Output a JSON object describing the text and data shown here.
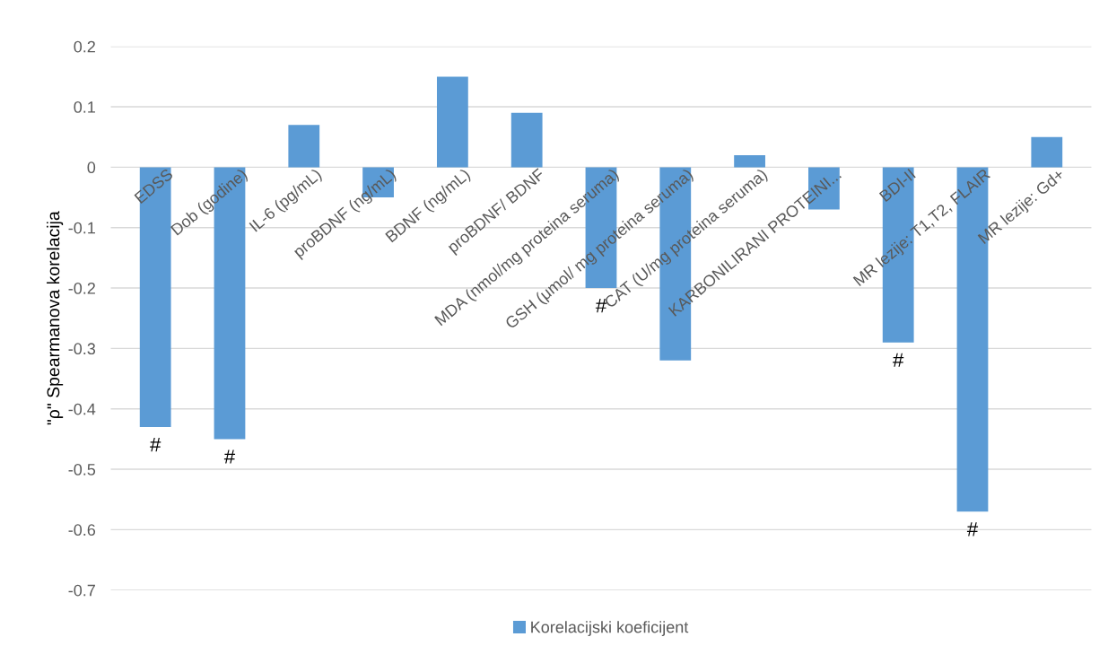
{
  "chart_data": {
    "type": "bar",
    "ylabel": "\"ρ\" Spearmanova korelacija",
    "categories": [
      "EDSS",
      "Dob (godine)",
      "IL-6 (pg/mL)",
      "proBDNF (ng/mL)",
      "BDNF (ng/mL)",
      "proBDNF/ BDNF",
      "MDA (nmol/mg proteina seruma)",
      "GSH (μmol/ mg proteina seruma)",
      "CAT (U/mg proteina seruma)",
      "KARBONILIRANI PROTEINI...",
      "BDI-II",
      "MR lezije: T1,T2, FLAIR",
      "MR lezije: Gd+"
    ],
    "series": [
      {
        "name": "Korelacijski koeficijent",
        "color": "#5b9bd5",
        "values": [
          -0.43,
          -0.45,
          0.07,
          -0.05,
          0.15,
          0.09,
          -0.2,
          -0.32,
          0.02,
          -0.07,
          -0.29,
          -0.57,
          0.05
        ]
      }
    ],
    "ylim": [
      -0.7,
      0.2
    ],
    "yticks": [
      -0.7,
      -0.6,
      -0.5,
      -0.4,
      -0.3,
      -0.2,
      -0.1,
      0,
      0.1,
      0.2
    ],
    "grid": "y",
    "legend": "bottom",
    "annotations": [
      {
        "text": "#",
        "x": "EDSS",
        "y": -0.43
      },
      {
        "text": "#",
        "x": "Dob (godine)",
        "y": -0.45
      },
      {
        "text": "#",
        "x": "MDA (nmol/mg proteina seruma)",
        "y": -0.2
      },
      {
        "text": "#",
        "x": "BDI-II",
        "y": -0.29
      },
      {
        "text": "#",
        "x": "MR lezije: T1,T2, FLAIR",
        "y": -0.57
      }
    ]
  }
}
